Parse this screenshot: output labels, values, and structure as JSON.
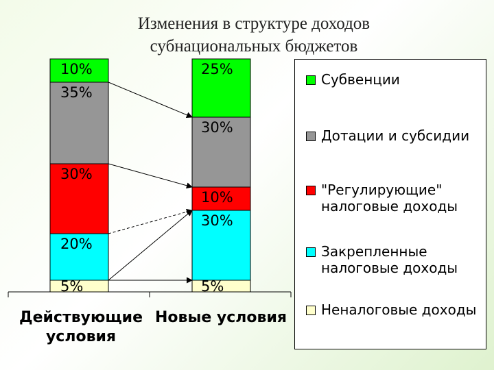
{
  "title_line1": "Изменения в структуре доходов",
  "title_line2": "субнациональных бюджетов",
  "chart_data": {
    "type": "bar",
    "stacked": true,
    "categories": [
      "Действующие условия",
      "Новые условия"
    ],
    "series": [
      {
        "name": "Неналоговые доходы",
        "color": "#ffffcc",
        "values": [
          5,
          5
        ]
      },
      {
        "name": "Закрепленные\nналоговые доходы",
        "color": "#00ffff",
        "values": [
          20,
          30
        ]
      },
      {
        "name": "\"Регулирующие\"\nналоговые доходы",
        "color": "#ff0000",
        "values": [
          30,
          10
        ]
      },
      {
        "name": "Дотации и субсидии",
        "color": "#969696",
        "values": [
          35,
          30
        ]
      },
      {
        "name": "Субвенции",
        "color": "#00ff00",
        "values": [
          10,
          25
        ]
      }
    ],
    "segment_labels": [
      [
        "5%",
        "20%",
        "30%",
        "35%",
        "10%"
      ],
      [
        "5%",
        "30%",
        "10%",
        "30%",
        "25%"
      ]
    ],
    "category_labels": [
      [
        "Действующие",
        "условия"
      ],
      [
        "Новые условия"
      ]
    ],
    "arrows": [
      {
        "from_category": 0,
        "from_boundary": 10,
        "to_category": 1,
        "to_boundary": 25,
        "style": "solid"
      },
      {
        "from_category": 0,
        "from_boundary": 45,
        "to_category": 1,
        "to_boundary": 55,
        "style": "solid"
      },
      {
        "from_category": 0,
        "from_boundary": 75,
        "to_category": 1,
        "to_boundary": 65,
        "style": "dashed"
      },
      {
        "from_category": 0,
        "from_boundary": 95,
        "to_category": 1,
        "to_boundary": 95,
        "style": "solid"
      },
      {
        "from_category": 0,
        "from_boundary": 95,
        "to_category": 1,
        "to_boundary": 65,
        "style": "solid"
      }
    ],
    "legend_position": "right",
    "ylim": [
      0,
      100
    ],
    "grid": false
  }
}
